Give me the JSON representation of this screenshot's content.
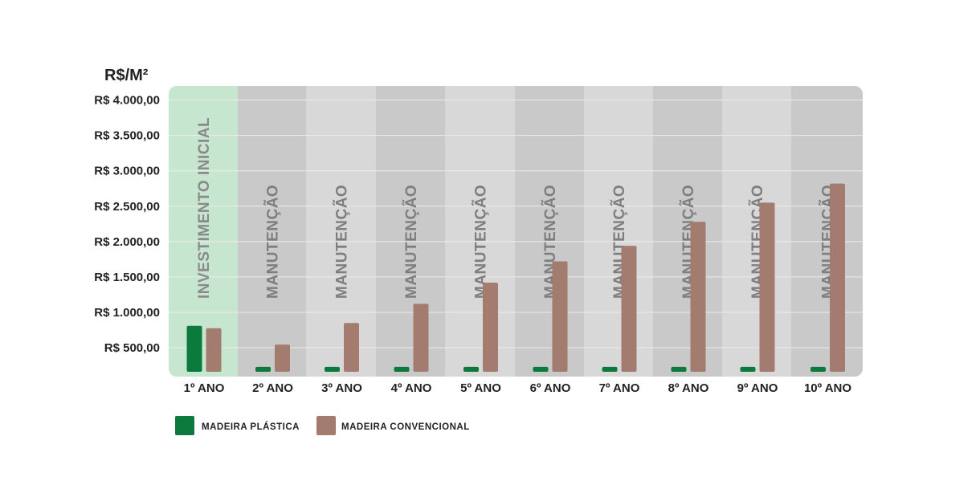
{
  "chart_data": {
    "type": "bar",
    "ylabel": "R$/M²",
    "categories": [
      "1º ANO",
      "2º ANO",
      "3º ANO",
      "4º ANO",
      "5º ANO",
      "6º ANO",
      "7º ANO",
      "8º ANO",
      "9º ANO",
      "10º ANO"
    ],
    "column_labels": [
      "INVESTIMENTO INICIAL",
      "MANUTENÇÃO",
      "MANUTENÇÃO",
      "MANUTENÇÃO",
      "MANUTENÇÃO",
      "MANUTENÇÃO",
      "MANUTENÇÃO",
      "MANUTENÇÃO",
      "MANUTENÇÃO",
      "MANUTENÇÃO"
    ],
    "yticks": [
      500,
      1000,
      1500,
      2000,
      2500,
      3000,
      3500,
      4000
    ],
    "ytick_labels": [
      "R$ 500,00",
      "R$ 1.000,00",
      "R$ 1.500,00",
      "R$ 2.000,00",
      "R$ 2.500,00",
      "R$ 3.000,00",
      "R$ 3.500,00",
      "R$ 4.000,00"
    ],
    "ylim": [
      160,
      4200
    ],
    "series": [
      {
        "name": "MADEIRA PLÁSTICA",
        "color": "#0b7a3c",
        "values": [
          810,
          230,
          230,
          230,
          230,
          230,
          230,
          230,
          230,
          230
        ]
      },
      {
        "name": "MADEIRA CONVENCIONAL",
        "color": "#a47c6f",
        "values": [
          775,
          545,
          850,
          1120,
          1420,
          1720,
          1940,
          2280,
          2550,
          2820
        ]
      }
    ],
    "grid": true,
    "legend": "bottom-left"
  },
  "colors": {
    "first_column_bg": "#c6e6cf",
    "column_bg_dark": "#c9c9c9",
    "column_bg_light": "#d8d8d8",
    "gridline": "#ececec"
  }
}
